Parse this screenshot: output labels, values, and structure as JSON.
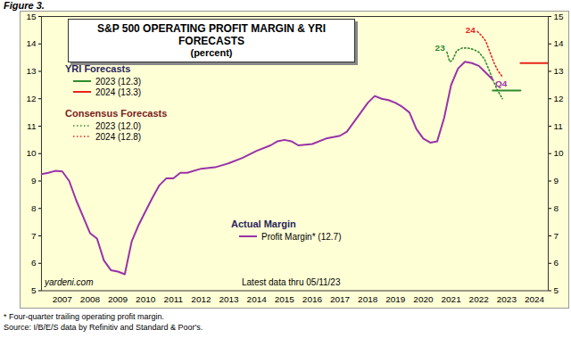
{
  "chart_data": {
    "type": "line",
    "figure_label": "Figure 3.",
    "title": "S&P 500 OPERATING PROFIT MARGIN & YRI FORECASTS",
    "subtitle": "(percent)",
    "xlim": [
      2006.75,
      2025.0
    ],
    "xticks": [
      {
        "value": 2007.5,
        "label": "2007"
      },
      {
        "value": 2008.5,
        "label": "2008"
      },
      {
        "value": 2009.5,
        "label": "2009"
      },
      {
        "value": 2010.5,
        "label": "2010"
      },
      {
        "value": 2011.5,
        "label": "2011"
      },
      {
        "value": 2012.5,
        "label": "2012"
      },
      {
        "value": 2013.5,
        "label": "2013"
      },
      {
        "value": 2014.5,
        "label": "2014"
      },
      {
        "value": 2015.5,
        "label": "2015"
      },
      {
        "value": 2016.5,
        "label": "2016"
      },
      {
        "value": 2017.5,
        "label": "2017"
      },
      {
        "value": 2018.5,
        "label": "2018"
      },
      {
        "value": 2019.5,
        "label": "2019"
      },
      {
        "value": 2020.5,
        "label": "2020"
      },
      {
        "value": 2021.5,
        "label": "2021"
      },
      {
        "value": 2022.5,
        "label": "2022"
      },
      {
        "value": 2023.5,
        "label": "2023"
      },
      {
        "value": 2024.5,
        "label": "2024"
      }
    ],
    "ylim": [
      5,
      15
    ],
    "yticks": [
      5,
      6,
      7,
      8,
      9,
      10,
      11,
      12,
      13,
      14,
      15
    ],
    "grid": false,
    "legend_groups": [
      {
        "name": "YRI Forecasts",
        "color": "#2a1f5c"
      },
      {
        "name": "Consensus Forecasts",
        "color": "#7a1c1c"
      },
      {
        "name": "Actual Margin",
        "color": "#2a1f5c"
      }
    ],
    "series": [
      {
        "name": "2023 (12.3)",
        "group": "YRI Forecasts",
        "color": "#2e8b2e",
        "line_style": "solid",
        "x": [
          2023.0,
          2024.0
        ],
        "values": [
          12.3,
          12.3
        ]
      },
      {
        "name": "2024 (13.3)",
        "group": "YRI Forecasts",
        "color": "#e8251c",
        "line_style": "solid",
        "x": [
          2024.0,
          2025.0
        ],
        "values": [
          13.3,
          13.3
        ]
      },
      {
        "name": "2023 (12.0)",
        "group": "Consensus Forecasts",
        "color": "#2e8b2e",
        "line_style": "dotted",
        "x": [
          2021.35,
          2021.45,
          2021.55,
          2021.7,
          2021.9,
          2022.1,
          2022.3,
          2022.5,
          2022.7,
          2022.85,
          2023.0,
          2023.15,
          2023.35
        ],
        "values": [
          13.7,
          13.35,
          13.4,
          13.75,
          13.85,
          13.85,
          13.8,
          13.7,
          13.45,
          13.1,
          12.7,
          12.35,
          12.0
        ]
      },
      {
        "name": "2024 (12.8)",
        "group": "Consensus Forecasts",
        "color": "#e8251c",
        "line_style": "dotted",
        "x": [
          2022.45,
          2022.6,
          2022.75,
          2022.9,
          2023.05,
          2023.2,
          2023.35
        ],
        "values": [
          14.45,
          14.3,
          14.1,
          13.7,
          13.3,
          13.0,
          12.8
        ]
      },
      {
        "name": "Profit Margin* (12.7)",
        "group": "Actual Margin",
        "color": "#9932a8",
        "line_style": "solid",
        "x": [
          2006.75,
          2007.0,
          2007.25,
          2007.5,
          2007.75,
          2008.0,
          2008.25,
          2008.5,
          2008.75,
          2009.0,
          2009.25,
          2009.5,
          2009.75,
          2010.0,
          2010.25,
          2010.5,
          2010.75,
          2011.0,
          2011.25,
          2011.5,
          2011.75,
          2012.0,
          2012.5,
          2013.0,
          2013.5,
          2014.0,
          2014.5,
          2015.0,
          2015.25,
          2015.5,
          2015.75,
          2016.0,
          2016.5,
          2017.0,
          2017.5,
          2017.75,
          2018.0,
          2018.25,
          2018.5,
          2018.75,
          2019.0,
          2019.25,
          2019.5,
          2019.75,
          2020.0,
          2020.25,
          2020.5,
          2020.75,
          2021.0,
          2021.25,
          2021.5,
          2021.75,
          2022.0,
          2022.25,
          2022.5,
          2022.75,
          2023.0
        ],
        "values": [
          9.25,
          9.3,
          9.37,
          9.35,
          9.0,
          8.3,
          7.7,
          7.1,
          6.9,
          6.1,
          5.75,
          5.7,
          5.6,
          6.8,
          7.4,
          7.9,
          8.4,
          8.85,
          9.1,
          9.1,
          9.3,
          9.3,
          9.45,
          9.5,
          9.65,
          9.85,
          10.1,
          10.3,
          10.45,
          10.5,
          10.45,
          10.3,
          10.35,
          10.55,
          10.65,
          10.8,
          11.15,
          11.5,
          11.85,
          12.1,
          12.0,
          11.95,
          11.85,
          11.7,
          11.5,
          10.9,
          10.55,
          10.4,
          10.45,
          11.3,
          12.5,
          13.1,
          13.35,
          13.3,
          13.2,
          12.95,
          12.7
        ]
      }
    ],
    "annotations": [
      {
        "text": "23",
        "x": 2021.1,
        "y": 13.85,
        "color": "#2e8b2e"
      },
      {
        "text": "24",
        "x": 2022.2,
        "y": 14.5,
        "color": "#e8251c"
      },
      {
        "text": "Q4",
        "x": 2023.3,
        "y": 12.55,
        "color": "#9932a8"
      }
    ],
    "watermark": "yardeni.com",
    "note": "Latest data thru 05/11/23",
    "footnotes": [
      "*  Four-quarter trailing operating profit margin.",
      "Source: I/B/E/S data by Refinitiv and Standard & Poor's."
    ]
  }
}
